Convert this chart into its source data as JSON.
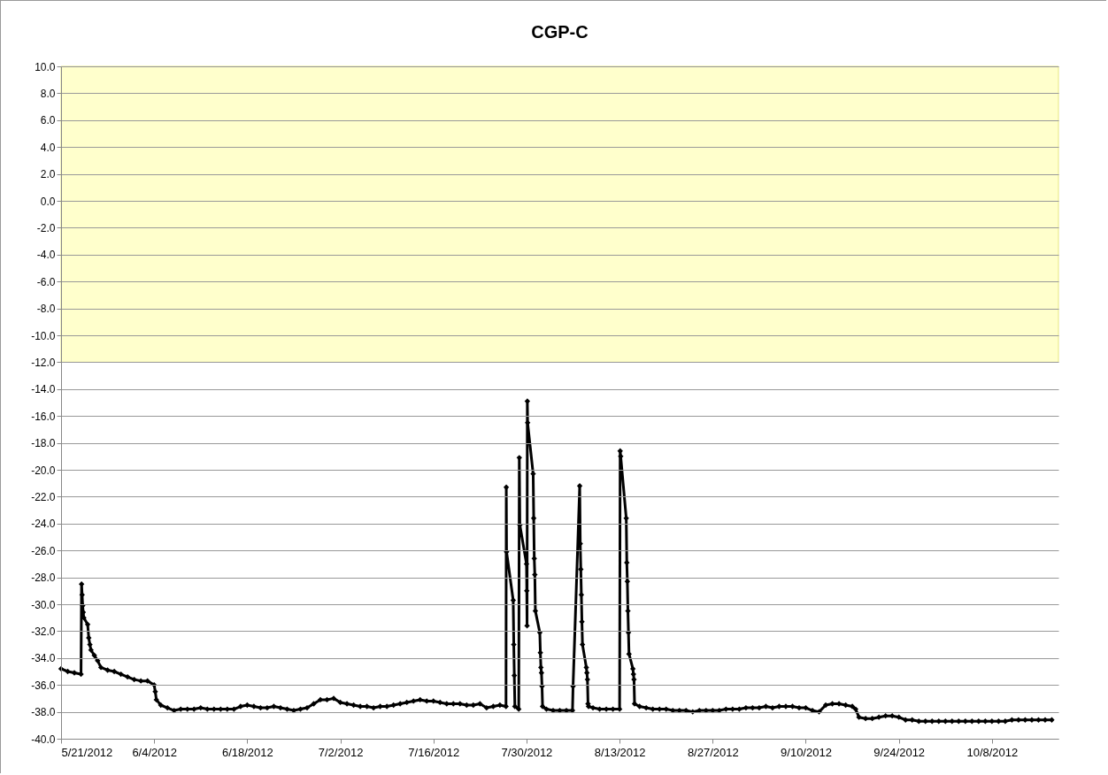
{
  "chart_data": {
    "type": "line",
    "title": "CGP-C",
    "marker": "diamond",
    "line_style": "solid",
    "grid": "y",
    "xlim": [
      "2012-05-21",
      "2012-10-18"
    ],
    "xticks": [
      {
        "value": "2012-05-21",
        "label": "5/21/2012"
      },
      {
        "value": "2012-06-04",
        "label": "6/4/2012"
      },
      {
        "value": "2012-06-18",
        "label": "6/18/2012"
      },
      {
        "value": "2012-07-02",
        "label": "7/2/2012"
      },
      {
        "value": "2012-07-16",
        "label": "7/16/2012"
      },
      {
        "value": "2012-07-30",
        "label": "7/30/2012"
      },
      {
        "value": "2012-08-13",
        "label": "8/13/2012"
      },
      {
        "value": "2012-08-27",
        "label": "8/27/2012"
      },
      {
        "value": "2012-09-10",
        "label": "9/10/2012"
      },
      {
        "value": "2012-09-24",
        "label": "9/24/2012"
      },
      {
        "value": "2012-10-08",
        "label": "10/8/2012"
      }
    ],
    "ylim": [
      -40,
      10
    ],
    "yticks": [
      {
        "value": -40,
        "label": "-40.0"
      },
      {
        "value": -38,
        "label": "-38.0"
      },
      {
        "value": -36,
        "label": "-36.0"
      },
      {
        "value": -34,
        "label": "-34.0"
      },
      {
        "value": -32,
        "label": "-32.0"
      },
      {
        "value": -30,
        "label": "-30.0"
      },
      {
        "value": -28,
        "label": "-28.0"
      },
      {
        "value": -26,
        "label": "-26.0"
      },
      {
        "value": -24,
        "label": "-24.0"
      },
      {
        "value": -22,
        "label": "-22.0"
      },
      {
        "value": -20,
        "label": "-20.0"
      },
      {
        "value": -18,
        "label": "-18.0"
      },
      {
        "value": -16,
        "label": "-16.0"
      },
      {
        "value": -14,
        "label": "-14.0"
      },
      {
        "value": -12,
        "label": "-12.0"
      },
      {
        "value": -10,
        "label": "-10.0"
      },
      {
        "value": -8,
        "label": "-8.0"
      },
      {
        "value": -6,
        "label": "-6.0"
      },
      {
        "value": -4,
        "label": "-4.0"
      },
      {
        "value": -2,
        "label": "-2.0"
      },
      {
        "value": 0,
        "label": "0.0"
      },
      {
        "value": 2,
        "label": "2.0"
      },
      {
        "value": 4,
        "label": "4.0"
      },
      {
        "value": 6,
        "label": "6.0"
      },
      {
        "value": 8,
        "label": "8.0"
      },
      {
        "value": 10,
        "label": "10.0"
      }
    ],
    "bands": [
      {
        "axis": "y",
        "from": -12,
        "to": 10,
        "color": "#ffffcc"
      }
    ],
    "x": [
      "2012-05-21",
      "2012-05-22",
      "2012-05-23",
      "2012-05-24",
      "2012-05-24T02:00",
      "2012-05-24T04:00",
      "2012-05-24T06:00",
      "2012-05-24T08:00",
      "2012-05-24T10:00",
      "2012-05-25",
      "2012-05-25T04:00",
      "2012-05-25T08:00",
      "2012-05-25T12:00",
      "2012-05-26",
      "2012-05-26T12:00",
      "2012-05-27",
      "2012-05-28",
      "2012-05-29",
      "2012-05-30",
      "2012-05-31",
      "2012-06-01",
      "2012-06-02",
      "2012-06-03",
      "2012-06-04",
      "2012-06-04T04:00",
      "2012-06-04T08:00",
      "2012-06-05",
      "2012-06-06",
      "2012-06-07",
      "2012-06-08",
      "2012-06-09",
      "2012-06-10",
      "2012-06-11",
      "2012-06-12",
      "2012-06-13",
      "2012-06-14",
      "2012-06-15",
      "2012-06-16",
      "2012-06-17",
      "2012-06-18",
      "2012-06-19",
      "2012-06-20",
      "2012-06-21",
      "2012-06-22",
      "2012-06-23",
      "2012-06-24",
      "2012-06-25",
      "2012-06-26",
      "2012-06-27",
      "2012-06-28",
      "2012-06-29",
      "2012-06-30",
      "2012-07-01",
      "2012-07-02",
      "2012-07-03",
      "2012-07-04",
      "2012-07-05",
      "2012-07-06",
      "2012-07-07",
      "2012-07-08",
      "2012-07-09",
      "2012-07-10",
      "2012-07-11",
      "2012-07-12",
      "2012-07-13",
      "2012-07-14",
      "2012-07-15",
      "2012-07-16",
      "2012-07-17",
      "2012-07-18",
      "2012-07-19",
      "2012-07-20",
      "2012-07-21",
      "2012-07-22",
      "2012-07-23",
      "2012-07-24",
      "2012-07-25",
      "2012-07-26",
      "2012-07-26T22:00",
      "2012-07-26T23:00",
      "2012-07-27",
      "2012-07-28",
      "2012-07-28T02:00",
      "2012-07-28T04:00",
      "2012-07-28T06:00",
      "2012-07-28T20:00",
      "2012-07-28T22:00",
      "2012-07-29",
      "2012-07-30",
      "2012-07-30T01:00",
      "2012-07-30T02:00",
      "2012-07-30T03:00",
      "2012-07-30T04:00",
      "2012-07-31",
      "2012-07-31T02:00",
      "2012-07-31T04:00",
      "2012-07-31T06:00",
      "2012-07-31T08:00",
      "2012-08-01",
      "2012-08-01T02:00",
      "2012-08-01T04:00",
      "2012-08-01T06:00",
      "2012-08-01T08:00",
      "2012-08-01T10:00",
      "2012-08-02",
      "2012-08-03",
      "2012-08-04",
      "2012-08-05",
      "2012-08-05T22:00",
      "2012-08-06",
      "2012-08-07",
      "2012-08-07T02:00",
      "2012-08-07T04:00",
      "2012-08-07T06:00",
      "2012-08-07T08:00",
      "2012-08-07T10:00",
      "2012-08-08",
      "2012-08-08T02:00",
      "2012-08-08T04:00",
      "2012-08-08T06:00",
      "2012-08-08T08:00",
      "2012-08-09",
      "2012-08-10",
      "2012-08-11",
      "2012-08-12",
      "2012-08-13",
      "2012-08-13T02:00",
      "2012-08-13T04:00",
      "2012-08-14",
      "2012-08-14T02:00",
      "2012-08-14T04:00",
      "2012-08-14T06:00",
      "2012-08-14T08:00",
      "2012-08-14T10:00",
      "2012-08-15",
      "2012-08-15T02:00",
      "2012-08-15T04:00",
      "2012-08-15T06:00",
      "2012-08-16",
      "2012-08-17",
      "2012-08-18",
      "2012-08-19",
      "2012-08-20",
      "2012-08-21",
      "2012-08-22",
      "2012-08-23",
      "2012-08-24",
      "2012-08-25",
      "2012-08-26",
      "2012-08-27",
      "2012-08-28",
      "2012-08-29",
      "2012-08-30",
      "2012-08-31",
      "2012-09-01",
      "2012-09-02",
      "2012-09-03",
      "2012-09-04",
      "2012-09-05",
      "2012-09-06",
      "2012-09-07",
      "2012-09-08",
      "2012-09-09",
      "2012-09-10",
      "2012-09-11",
      "2012-09-12",
      "2012-09-13",
      "2012-09-14",
      "2012-09-15",
      "2012-09-16",
      "2012-09-17",
      "2012-09-17T12:00",
      "2012-09-18",
      "2012-09-19",
      "2012-09-20",
      "2012-09-21",
      "2012-09-22",
      "2012-09-23",
      "2012-09-24",
      "2012-09-25",
      "2012-09-26",
      "2012-09-27",
      "2012-09-28",
      "2012-09-29",
      "2012-09-30",
      "2012-10-01",
      "2012-10-02",
      "2012-10-03",
      "2012-10-04",
      "2012-10-05",
      "2012-10-06",
      "2012-10-07",
      "2012-10-08",
      "2012-10-09",
      "2012-10-10",
      "2012-10-11",
      "2012-10-12",
      "2012-10-13",
      "2012-10-14",
      "2012-10-15",
      "2012-10-16",
      "2012-10-17"
    ],
    "series": [
      {
        "color": "#000000",
        "values": [
          -34.8,
          -35.0,
          -35.1,
          -35.2,
          -28.5,
          -29.3,
          -30.1,
          -30.6,
          -31.0,
          -31.5,
          -32.5,
          -33.0,
          -33.4,
          -33.8,
          -34.2,
          -34.7,
          -34.9,
          -35.0,
          -35.2,
          -35.4,
          -35.6,
          -35.7,
          -35.7,
          -36.0,
          -36.5,
          -37.1,
          -37.5,
          -37.7,
          -37.9,
          -37.8,
          -37.8,
          -37.8,
          -37.7,
          -37.8,
          -37.8,
          -37.8,
          -37.8,
          -37.8,
          -37.6,
          -37.5,
          -37.6,
          -37.7,
          -37.7,
          -37.6,
          -37.7,
          -37.8,
          -37.9,
          -37.8,
          -37.7,
          -37.4,
          -37.1,
          -37.1,
          -37.0,
          -37.3,
          -37.4,
          -37.5,
          -37.6,
          -37.6,
          -37.7,
          -37.6,
          -37.6,
          -37.5,
          -37.4,
          -37.3,
          -37.2,
          -37.1,
          -37.2,
          -37.2,
          -37.3,
          -37.4,
          -37.4,
          -37.4,
          -37.5,
          -37.5,
          -37.4,
          -37.7,
          -37.6,
          -37.5,
          -37.6,
          -21.3,
          -26.1,
          -29.7,
          -33.0,
          -35.3,
          -37.6,
          -37.8,
          -19.1,
          -24.1,
          -27.0,
          -29.0,
          -31.6,
          -14.9,
          -16.5,
          -20.3,
          -23.6,
          -26.6,
          -27.8,
          -30.5,
          -32.1,
          -33.6,
          -34.7,
          -35.1,
          -36.1,
          -37.6,
          -37.8,
          -37.9,
          -37.9,
          -37.9,
          -37.9,
          -36.1,
          -21.2,
          -25.5,
          -27.4,
          -29.3,
          -31.3,
          -33.0,
          -34.7,
          -35.1,
          -35.6,
          -37.4,
          -37.6,
          -37.7,
          -37.8,
          -37.8,
          -37.8,
          -37.8,
          -18.6,
          -19.0,
          -23.6,
          -26.9,
          -28.3,
          -30.5,
          -32.1,
          -33.7,
          -34.8,
          -35.2,
          -35.6,
          -37.4,
          -37.6,
          -37.7,
          -37.8,
          -37.8,
          -37.8,
          -37.9,
          -37.9,
          -37.9,
          -38.0,
          -37.9,
          -37.9,
          -37.9,
          -37.9,
          -37.8,
          -37.8,
          -37.8,
          -37.7,
          -37.7,
          -37.7,
          -37.6,
          -37.7,
          -37.6,
          -37.6,
          -37.6,
          -37.7,
          -37.7,
          -37.9,
          -38.0,
          -37.5,
          -37.4,
          -37.4,
          -37.5,
          -37.6,
          -37.8,
          -38.4,
          -38.5,
          -38.5,
          -38.4,
          -38.3,
          -38.3,
          -38.4,
          -38.6,
          -38.6,
          -38.7,
          -38.7,
          -38.7,
          -38.7,
          -38.7,
          -38.7,
          -38.7,
          -38.7,
          -38.7,
          -38.7,
          -38.7,
          -38.7,
          -38.7,
          -38.7,
          -38.6,
          -38.6,
          -38.6,
          -38.6,
          -38.6,
          -38.6,
          -38.6
        ]
      }
    ]
  }
}
